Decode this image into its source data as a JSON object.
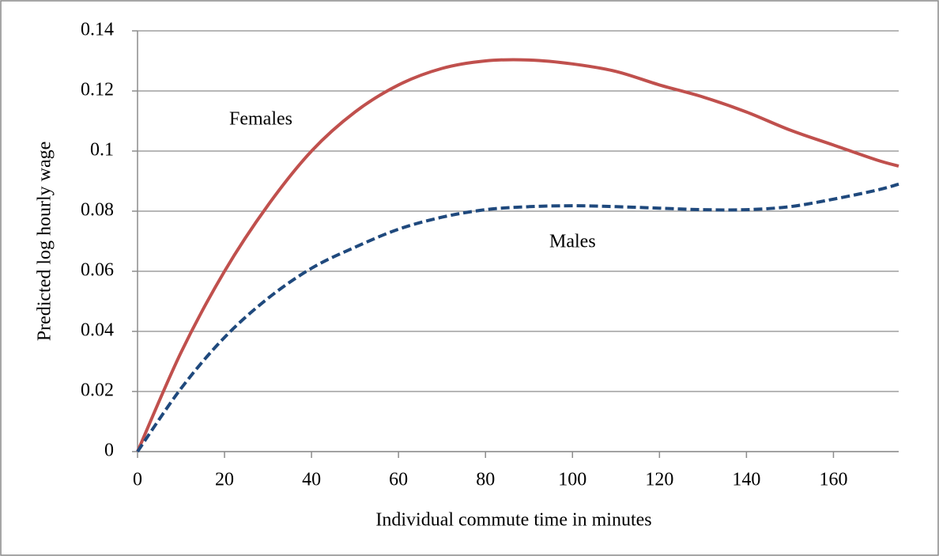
{
  "chart_data": {
    "type": "line",
    "x_label": "Individual commute time in minutes",
    "y_label": "Predicted log hourly wage",
    "annotations": [
      "Females",
      "Males"
    ],
    "x": [
      0,
      10,
      20,
      30,
      40,
      50,
      60,
      70,
      80,
      90,
      100,
      110,
      120,
      130,
      140,
      150,
      160,
      170,
      175
    ],
    "series": [
      {
        "name": "Females",
        "color": "#c0504d",
        "dash": false,
        "values": [
          0,
          0.033,
          0.06,
          0.082,
          0.1,
          0.113,
          0.122,
          0.1275,
          0.13,
          0.1303,
          0.129,
          0.1265,
          0.122,
          0.118,
          0.113,
          0.107,
          0.102,
          0.097,
          0.095
        ]
      },
      {
        "name": "Males",
        "color": "#1f497d",
        "dash": true,
        "values": [
          0,
          0.021,
          0.038,
          0.051,
          0.061,
          0.068,
          0.074,
          0.078,
          0.0805,
          0.0815,
          0.0818,
          0.0815,
          0.081,
          0.0805,
          0.0805,
          0.0815,
          0.084,
          0.087,
          0.089
        ]
      }
    ],
    "xlim": [
      0,
      175
    ],
    "xticks": [
      0,
      20,
      40,
      60,
      80,
      100,
      120,
      140,
      160
    ],
    "ylim": [
      0,
      0.14
    ],
    "yticks": [
      0,
      0.02,
      0.04,
      0.06,
      0.08,
      0.1,
      0.12,
      0.14
    ],
    "grid": true
  }
}
